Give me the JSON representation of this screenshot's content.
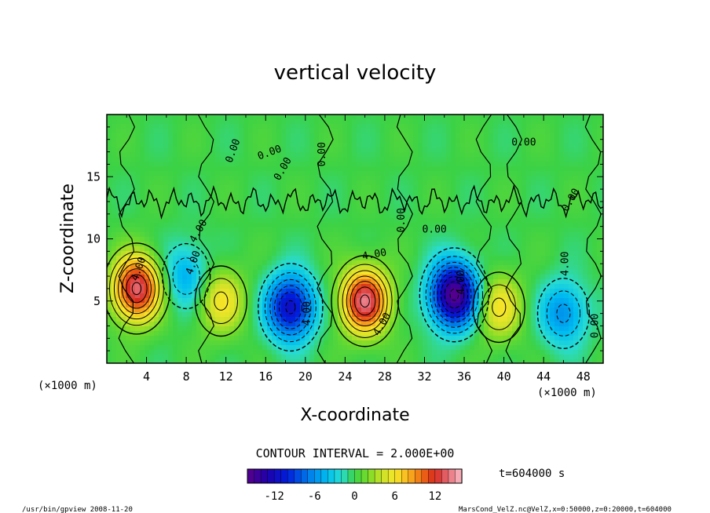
{
  "chart_data": {
    "type": "heatmap",
    "title": "vertical velocity",
    "xlabel": "X-coordinate",
    "ylabel": "Z-coordinate",
    "x_unit": "(×1000 m)",
    "z_unit": "(×1000 m)",
    "xlim": [
      0,
      50
    ],
    "ylim": [
      0,
      20
    ],
    "x_ticks": [
      "4",
      "8",
      "12",
      "16",
      "20",
      "24",
      "28",
      "32",
      "36",
      "40",
      "44",
      "48"
    ],
    "y_ticks": [
      "5",
      "10",
      "15"
    ],
    "contour_interval_label": "CONTOUR INTERVAL = 2.000E+00",
    "contour_labels": [
      "0.00",
      "0.00",
      "0.00",
      "0.00",
      "0.00",
      "0.00",
      "0.00",
      "0.00",
      "4.00",
      "4.00",
      "4.00",
      "4.00",
      "4.00",
      "4.00",
      "4.00",
      "4.00",
      "0.00"
    ],
    "time_label": "t=604000 s",
    "colorbar": {
      "min": -16,
      "max": 16,
      "tick_labels": [
        "-12",
        "-6",
        "0",
        "6",
        "12"
      ],
      "tick_values": [
        -12,
        -6,
        0,
        6,
        12
      ]
    },
    "features": [
      {
        "type": "updraft",
        "x": 3.0,
        "z": 6.0,
        "peak": 14
      },
      {
        "type": "updraft",
        "x": 26.0,
        "z": 5.0,
        "peak": 14
      },
      {
        "type": "downdraft",
        "x": 18.5,
        "z": 4.5,
        "peak": -12
      },
      {
        "type": "downdraft",
        "x": 35.0,
        "z": 5.5,
        "peak": -16
      },
      {
        "type": "downdraft",
        "x": 8.0,
        "z": 7.0,
        "peak": -5
      },
      {
        "type": "downdraft",
        "x": 46.0,
        "z": 4.0,
        "peak": -6
      },
      {
        "type": "updraft",
        "x": 11.5,
        "z": 5.0,
        "peak": 6
      },
      {
        "type": "updraft",
        "x": 39.5,
        "z": 4.5,
        "peak": 6
      }
    ]
  },
  "footer": {
    "left": "/usr/bin/gpview   2008-11-20",
    "right": "MarsCond_VelZ.nc@VelZ,x=0:50000,z=0:20000,t=604000"
  }
}
